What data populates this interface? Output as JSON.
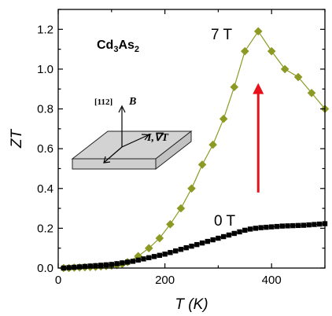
{
  "chart_data": {
    "type": "scatter",
    "xlabel": "T (K)",
    "ylabel": "ZT",
    "xlim": [
      0,
      500
    ],
    "ylim": [
      0,
      1.3
    ],
    "xticks": [
      0,
      200,
      400
    ],
    "yticks": [
      0.0,
      0.2,
      0.4,
      0.6,
      0.8,
      1.0,
      1.2
    ],
    "grid": false,
    "compound": "Cd3As2",
    "inset": {
      "axis_label": "[112]",
      "field_label": "B",
      "current_label": "I,∇T"
    },
    "annotations": [
      {
        "text": "7 T",
        "near_series": "7 T"
      },
      {
        "text": "0 T",
        "near_series": "0 T"
      }
    ],
    "arrow": {
      "from": [
        375,
        0.38
      ],
      "to": [
        375,
        0.93
      ],
      "color": "#e8101a"
    },
    "series": [
      {
        "name": "7 T",
        "color": "#8c9a24",
        "marker": "diamond",
        "line": true,
        "x": [
          10,
          20,
          30,
          40,
          50,
          60,
          70,
          80,
          90,
          100,
          110,
          120,
          130,
          150,
          170,
          190,
          210,
          230,
          250,
          270,
          290,
          310,
          330,
          350,
          375,
          400,
          425,
          450,
          475,
          500
        ],
        "y": [
          0.0,
          0.0,
          0.002,
          0.003,
          0.004,
          0.005,
          0.006,
          0.008,
          0.01,
          0.012,
          0.015,
          0.02,
          0.03,
          0.06,
          0.1,
          0.15,
          0.22,
          0.3,
          0.4,
          0.52,
          0.62,
          0.75,
          0.91,
          1.09,
          1.19,
          1.09,
          1.0,
          0.96,
          0.88,
          0.8
        ]
      },
      {
        "name": "0 T",
        "color": "#000000",
        "marker": "square",
        "line": true,
        "x": [
          10,
          20,
          30,
          40,
          50,
          60,
          70,
          80,
          90,
          100,
          110,
          120,
          130,
          140,
          150,
          160,
          170,
          180,
          190,
          200,
          210,
          220,
          230,
          240,
          250,
          260,
          270,
          280,
          290,
          300,
          310,
          320,
          330,
          340,
          350,
          360,
          370,
          380,
          390,
          400,
          410,
          420,
          430,
          440,
          450,
          460,
          470,
          480,
          490,
          500
        ],
        "y": [
          0.0,
          0.002,
          0.004,
          0.006,
          0.008,
          0.01,
          0.012,
          0.014,
          0.016,
          0.018,
          0.022,
          0.026,
          0.03,
          0.034,
          0.04,
          0.046,
          0.052,
          0.058,
          0.064,
          0.07,
          0.078,
          0.086,
          0.094,
          0.102,
          0.11,
          0.118,
          0.126,
          0.134,
          0.142,
          0.15,
          0.158,
          0.166,
          0.174,
          0.182,
          0.19,
          0.196,
          0.2,
          0.203,
          0.205,
          0.207,
          0.209,
          0.211,
          0.212,
          0.213,
          0.214,
          0.215,
          0.217,
          0.219,
          0.221,
          0.223
        ]
      }
    ]
  }
}
